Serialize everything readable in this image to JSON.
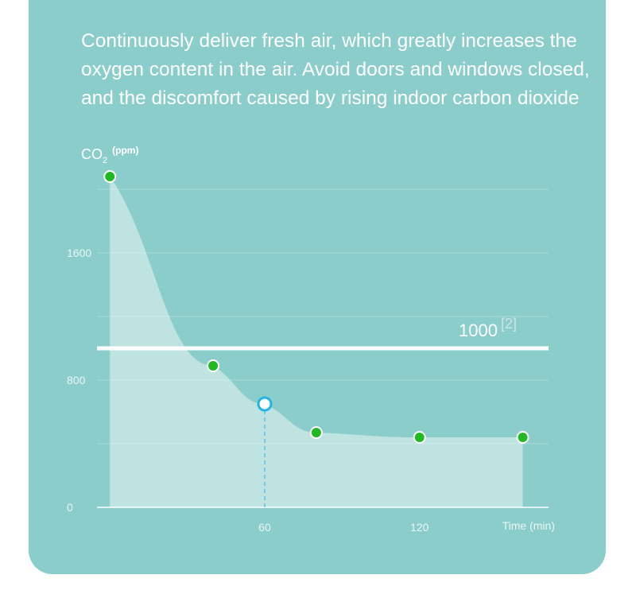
{
  "headline": {
    "line1": "Continuously deliver fresh air, which greatly increases the",
    "line2": "oxygen content in the air. Avoid doors and windows closed,",
    "line3": "and the discomfort caused by rising indoor carbon dioxide"
  },
  "chart_data": {
    "type": "area",
    "title": "",
    "ylabel_main": "CO",
    "ylabel_sub": "2",
    "ylabel_unit": "(ppm)",
    "xlabel": "Time (min)",
    "x_ticks": [
      "60",
      "120"
    ],
    "y_ticks": [
      "0",
      "800",
      "1600"
    ],
    "xlim": [
      -5,
      170
    ],
    "ylim": [
      0,
      2050
    ],
    "x": [
      0,
      40,
      60,
      80,
      120,
      160
    ],
    "y": [
      2080,
      890,
      650,
      470,
      440,
      440
    ],
    "highlight_index": 2,
    "threshold": {
      "value": 1000,
      "label": "1000",
      "note": "[2]"
    },
    "grid": true,
    "colors": {
      "marker": "#22b822",
      "highlight": "#24b4e4",
      "fill": "#dff1ef",
      "line": "#ffffff"
    }
  }
}
